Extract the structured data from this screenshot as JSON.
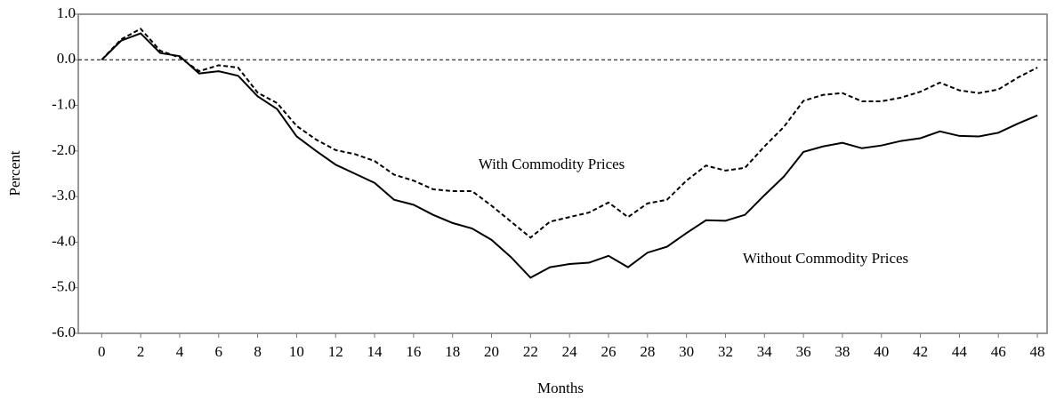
{
  "chart_data": {
    "type": "line",
    "x_label": "Months",
    "y_label": "Percent",
    "x": [
      0,
      1,
      2,
      3,
      4,
      5,
      6,
      7,
      8,
      9,
      10,
      11,
      12,
      13,
      14,
      15,
      16,
      17,
      18,
      19,
      20,
      21,
      22,
      23,
      24,
      25,
      26,
      27,
      28,
      29,
      30,
      31,
      32,
      33,
      34,
      35,
      36,
      37,
      38,
      39,
      40,
      41,
      42,
      43,
      44,
      45,
      46,
      47,
      48
    ],
    "series": [
      {
        "name": "Without Commodity Prices",
        "color": "#000000",
        "style": "solid",
        "values": [
          0.0,
          0.42,
          0.58,
          0.15,
          0.08,
          -0.3,
          -0.25,
          -0.35,
          -0.8,
          -1.08,
          -1.68,
          -2.0,
          -2.3,
          -2.5,
          -2.7,
          -3.07,
          -3.18,
          -3.4,
          -3.58,
          -3.7,
          -3.95,
          -4.33,
          -4.78,
          -4.55,
          -4.48,
          -4.45,
          -4.3,
          -4.55,
          -4.23,
          -4.1,
          -3.8,
          -3.52,
          -3.53,
          -3.4,
          -2.97,
          -2.56,
          -2.02,
          -1.9,
          -1.82,
          -1.94,
          -1.88,
          -1.78,
          -1.72,
          -1.57,
          -1.67,
          -1.68,
          -1.6,
          -1.4,
          -1.22
        ]
      },
      {
        "name": "With Commodity Prices",
        "color": "#000000",
        "style": "dashed",
        "values": [
          0.0,
          0.45,
          0.68,
          0.2,
          0.05,
          -0.25,
          -0.12,
          -0.17,
          -0.72,
          -0.95,
          -1.45,
          -1.75,
          -1.98,
          -2.07,
          -2.22,
          -2.52,
          -2.65,
          -2.84,
          -2.88,
          -2.88,
          -3.2,
          -3.55,
          -3.9,
          -3.55,
          -3.45,
          -3.35,
          -3.13,
          -3.45,
          -3.15,
          -3.07,
          -2.65,
          -2.32,
          -2.43,
          -2.37,
          -1.9,
          -1.47,
          -0.9,
          -0.77,
          -0.73,
          -0.91,
          -0.91,
          -0.83,
          -0.7,
          -0.5,
          -0.67,
          -0.73,
          -0.65,
          -0.39,
          -0.17
        ]
      }
    ],
    "xlim": [
      -1.2,
      48.5
    ],
    "xticks": [
      0,
      2,
      4,
      6,
      8,
      10,
      12,
      14,
      16,
      18,
      20,
      22,
      24,
      26,
      28,
      30,
      32,
      34,
      36,
      38,
      40,
      42,
      44,
      46,
      48
    ],
    "ylim": [
      -6,
      1
    ],
    "yticks": [
      {
        "value": 1,
        "label": "1.0"
      },
      {
        "value": 0,
        "label": "0.0"
      },
      {
        "value": -1,
        "label": "-1.0"
      },
      {
        "value": -2,
        "label": "-2.0"
      },
      {
        "value": -3,
        "label": "-3.0"
      },
      {
        "value": -4,
        "label": "-4.0"
      },
      {
        "value": -5,
        "label": "-5.0"
      },
      {
        "value": -6,
        "label": "-6.0"
      }
    ],
    "reference_line": 0,
    "grid": false
  }
}
